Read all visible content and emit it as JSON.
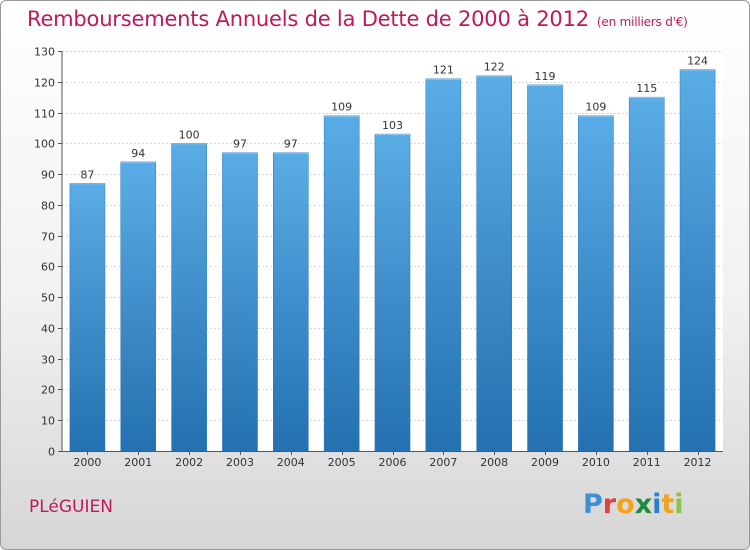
{
  "header": {
    "title": "Remboursements Annuels de la Dette de 2000 à 2012",
    "unit": "(en milliers d'€)"
  },
  "footer": {
    "commune": "PLéGUIEN",
    "logo_letters": [
      "P",
      "r",
      "o",
      "x",
      "i",
      "t",
      "i"
    ],
    "logo_colors": [
      "#3d8fd6",
      "#e2403a",
      "#f3a21c",
      "#1f8a3d",
      "#2c7fd1",
      "#f3a21c",
      "#8bc34a"
    ]
  },
  "chart_data": {
    "type": "bar",
    "categories": [
      "2000",
      "2001",
      "2002",
      "2003",
      "2004",
      "2005",
      "2006",
      "2007",
      "2008",
      "2009",
      "2010",
      "2011",
      "2012"
    ],
    "values": [
      87,
      94,
      100,
      97,
      97,
      109,
      103,
      121,
      122,
      119,
      109,
      115,
      124
    ],
    "ylim": [
      0,
      130
    ],
    "yticks": [
      0,
      10,
      20,
      30,
      40,
      50,
      60,
      70,
      80,
      90,
      100,
      110,
      120,
      130
    ],
    "grid": true,
    "bar_color_top": "#5aace6",
    "bar_color_bottom": "#2470b0"
  }
}
